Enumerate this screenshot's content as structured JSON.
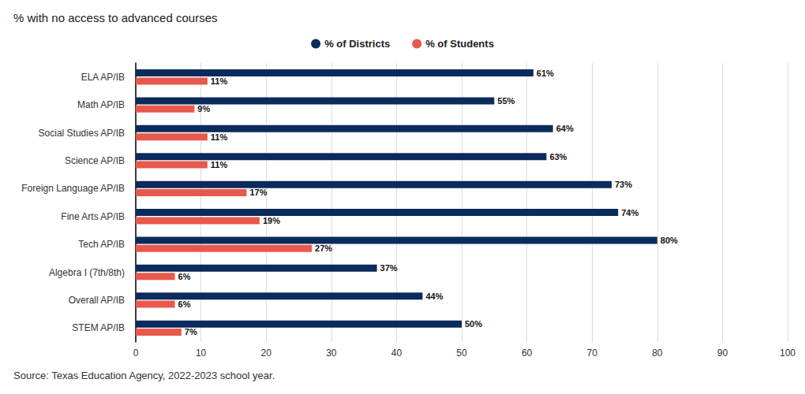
{
  "chart_data": {
    "type": "bar",
    "orientation": "horizontal",
    "title": "% with no access to advanced courses",
    "source": "Source: Texas Education Agency, 2022-2023 school year.",
    "categories": [
      "ELA AP/IB",
      "Math AP/IB",
      "Social Studies AP/IB",
      "Science AP/IB",
      "Foreign Language AP/IB",
      "Fine Arts AP/IB",
      "Tech AP/IB",
      "Algebra I (7th/8th)",
      "Overall AP/IB",
      "STEM AP/IB"
    ],
    "series": [
      {
        "name": "% of Districts",
        "color": "#0b2b5c",
        "values": [
          61,
          55,
          64,
          63,
          73,
          74,
          80,
          37,
          44,
          50
        ],
        "value_labels": [
          "61%",
          "55%",
          "64%",
          "63%",
          "73%",
          "74%",
          "80%",
          "37%",
          "44%",
          "50%"
        ]
      },
      {
        "name": "% of Students",
        "color": "#e8584b",
        "values": [
          11,
          9,
          11,
          11,
          17,
          19,
          27,
          6,
          6,
          7
        ],
        "value_labels": [
          "11%",
          "9%",
          "11%",
          "11%",
          "17%",
          "19%",
          "27%",
          "6%",
          "6%",
          "7%"
        ]
      }
    ],
    "xlim": [
      0,
      100
    ],
    "xticks": [
      0,
      10,
      20,
      30,
      40,
      50,
      60,
      70,
      80,
      90,
      100
    ],
    "grid": true,
    "legend": "top",
    "data_labels": true
  }
}
